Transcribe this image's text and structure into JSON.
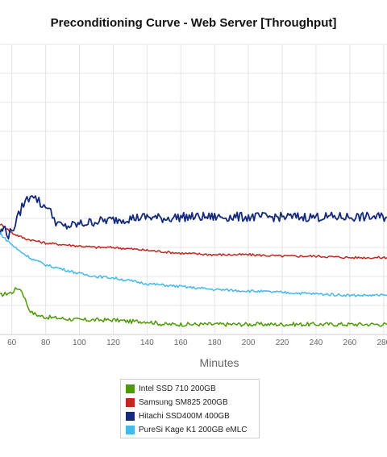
{
  "chart_data": {
    "type": "line",
    "title": "Preconditioning Curve - Web Server [Throughput]",
    "xlabel": "Minutes",
    "ylabel": "",
    "xlim": [
      53,
      282
    ],
    "ylim": [
      0,
      100
    ],
    "xticks": [
      60,
      80,
      100,
      120,
      140,
      160,
      180,
      200,
      220,
      240,
      260,
      280
    ],
    "grid": true,
    "legend_position": "bottom",
    "series": [
      {
        "name": "Intel SSD 710 200GB",
        "color": "#4e9a06",
        "x": [
          53,
          56,
          60,
          62,
          64,
          66,
          68,
          70,
          72,
          76,
          80,
          90,
          100,
          110,
          120,
          130,
          140,
          150,
          160,
          180,
          200,
          220,
          240,
          260,
          282
        ],
        "y": [
          13.5,
          14,
          14.5,
          15.5,
          16,
          15,
          12,
          9,
          7.5,
          6.5,
          6,
          5.5,
          5,
          5,
          5,
          4.5,
          4.5,
          3.5,
          3.5,
          3.5,
          3.5,
          3.5,
          3.5,
          3.5,
          3.5
        ]
      },
      {
        "name": "Samsung SM825 200GB",
        "color": "#c4261d",
        "x": [
          53,
          56,
          60,
          64,
          68,
          72,
          76,
          80,
          90,
          100,
          110,
          120,
          130,
          140,
          150,
          160,
          180,
          200,
          220,
          240,
          260,
          282
        ],
        "y": [
          38,
          37,
          35,
          34,
          33,
          32.5,
          32,
          31.5,
          31,
          30.5,
          30,
          30,
          29.5,
          29,
          28.5,
          28,
          27.5,
          27.5,
          27,
          27,
          26.5,
          26.5
        ]
      },
      {
        "name": "Hitachi SSD400M 400GB",
        "color": "#142a7a",
        "x": [
          53,
          56,
          58,
          60,
          62,
          64,
          66,
          68,
          70,
          72,
          74,
          76,
          78,
          80,
          82,
          84,
          86,
          88,
          90,
          95,
          100,
          105,
          110,
          120,
          130,
          140,
          150,
          160,
          180,
          200,
          220,
          240,
          260,
          282
        ],
        "y": [
          35,
          37,
          34,
          36,
          38,
          41,
          44,
          46,
          47,
          49,
          47,
          46,
          44,
          45,
          43,
          41,
          39,
          38,
          37,
          37.5,
          38,
          38.5,
          39,
          39.5,
          40,
          40.5,
          40,
          40.5,
          40.5,
          40.5,
          40.5,
          40.5,
          40.5,
          40.5
        ]
      },
      {
        "name": "PureSi Kage K1 200GB eMLC",
        "color": "#46b8ea",
        "x": [
          53,
          56,
          60,
          64,
          68,
          72,
          76,
          80,
          90,
          100,
          110,
          120,
          130,
          140,
          150,
          160,
          170,
          180,
          200,
          220,
          240,
          260,
          282
        ],
        "y": [
          35,
          33,
          31,
          29,
          27.5,
          26,
          25,
          24,
          22.5,
          21,
          20,
          19.5,
          18.5,
          17.5,
          17,
          16.5,
          16,
          15.5,
          15,
          14.5,
          14,
          13.5,
          13.5
        ]
      }
    ]
  }
}
